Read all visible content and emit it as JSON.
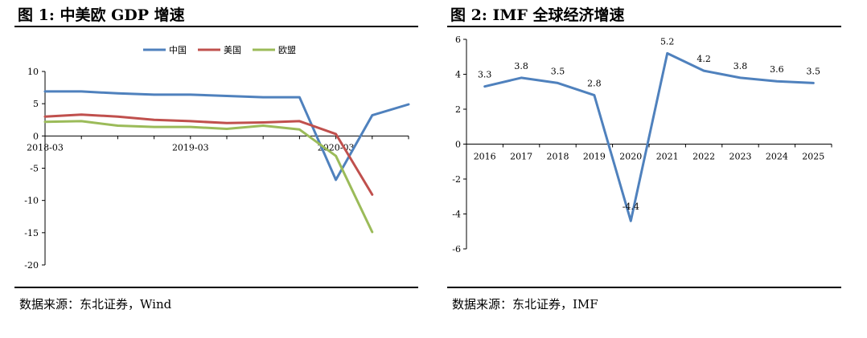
{
  "figure1": {
    "title": "图 1:  中美欧 GDP 增速",
    "source": "数据来源：东北证券，Wind"
  },
  "figure2": {
    "title": "图 2:  IMF 全球经济增速",
    "source": "数据来源：东北证券，IMF"
  },
  "chart_data": [
    {
      "type": "line",
      "title": "",
      "xlabel": "",
      "ylabel": "",
      "ylim": [
        -20,
        10
      ],
      "yticks": [
        10,
        5,
        0,
        -5,
        -10,
        -15,
        -20
      ],
      "x_tick_labels": [
        "2018-03",
        "2019-03",
        "2020-03"
      ],
      "x": [
        "2018-03",
        "2018-06",
        "2018-09",
        "2018-12",
        "2019-03",
        "2019-06",
        "2019-09",
        "2019-12",
        "2020-03",
        "2020-06",
        "2020-09"
      ],
      "legend_position": "top",
      "grid": false,
      "series": [
        {
          "name": "中国",
          "color": "#4f81bd",
          "values": [
            6.9,
            6.9,
            6.6,
            6.4,
            6.4,
            6.2,
            6.0,
            6.0,
            -6.8,
            3.2,
            4.9
          ]
        },
        {
          "name": "美国",
          "color": "#c0504d",
          "values": [
            3.0,
            3.3,
            3.0,
            2.5,
            2.3,
            2.0,
            2.1,
            2.3,
            0.3,
            -9.1,
            null
          ]
        },
        {
          "name": "欧盟",
          "color": "#9bbb59",
          "values": [
            2.2,
            2.3,
            1.6,
            1.4,
            1.4,
            1.1,
            1.6,
            1.0,
            -3.1,
            -14.9,
            null
          ]
        }
      ]
    },
    {
      "type": "line",
      "title": "",
      "xlabel": "",
      "ylabel": "",
      "ylim": [
        -6,
        6
      ],
      "yticks": [
        6,
        4,
        2,
        0,
        -2,
        -4,
        -6
      ],
      "x": [
        "2016",
        "2017",
        "2018",
        "2019",
        "2020",
        "2021",
        "2022",
        "2023",
        "2024",
        "2025"
      ],
      "grid": false,
      "series": [
        {
          "color": "#4f81bd",
          "values": [
            3.3,
            3.8,
            3.5,
            2.8,
            -4.4,
            5.2,
            4.2,
            3.8,
            3.6,
            3.5
          ]
        }
      ],
      "data_labels": [
        "3.3",
        "3.8",
        "3.5",
        "2.8",
        "-4.4",
        "5.2",
        "4.2",
        "3.8",
        "3.6",
        "3.5"
      ]
    }
  ]
}
